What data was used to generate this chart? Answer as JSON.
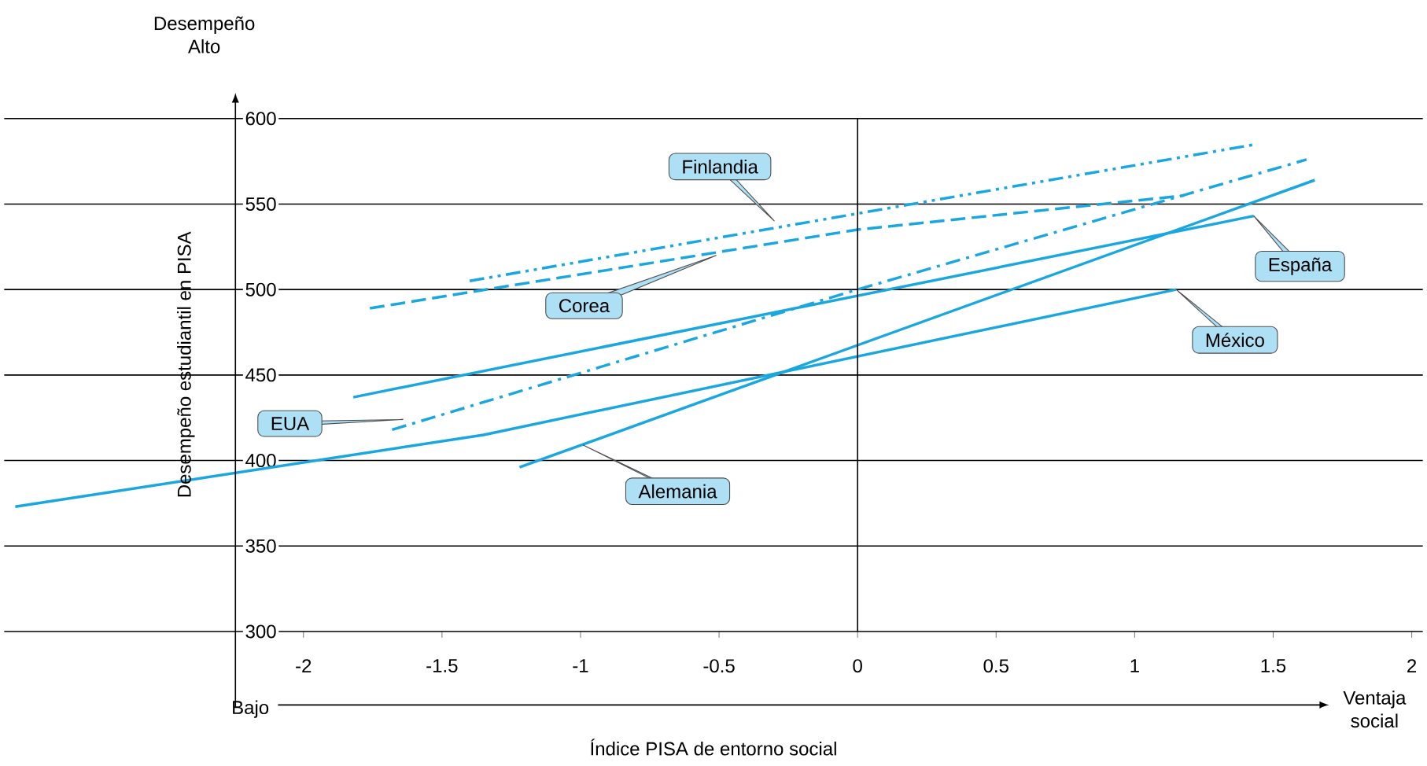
{
  "chart_data": {
    "type": "line",
    "xlabel": "Índice PISA de entorno social",
    "ylabel": "Desempeño estudiantil en PISA",
    "xlim": [
      -3.08,
      2.04
    ],
    "ylim": [
      300,
      600
    ],
    "xticks": [
      -2,
      -1.5,
      -1,
      -0.5,
      0,
      0.5,
      1,
      1.5,
      2
    ],
    "yticks": [
      300,
      350,
      400,
      450,
      500,
      550,
      600
    ],
    "grid": "y",
    "ref_lines": [
      {
        "axis": "x",
        "value": 0,
        "color": "#000000"
      }
    ],
    "series": [
      {
        "x": [
          -1.4,
          1.44
        ],
        "values": [
          505,
          585
        ],
        "color": "#1aa7e0",
        "line_style": "dashdotdot"
      },
      {
        "x": [
          -1.76,
          0,
          1.18
        ],
        "values": [
          489,
          535,
          555
        ],
        "color": "#1aa7e0",
        "line_style": "dashed"
      },
      {
        "x": [
          -1.82,
          1.43
        ],
        "values": [
          437,
          543
        ],
        "color": "#1aa7e0",
        "line_style": "solid"
      },
      {
        "x": [
          -3.04,
          -1.35,
          1.15
        ],
        "values": [
          373,
          415,
          500
        ],
        "color": "#1aa7e0",
        "line_style": "solid"
      },
      {
        "x": [
          -1.68,
          0,
          1.62
        ],
        "values": [
          418,
          500,
          576
        ],
        "color": "#1aa7e0",
        "line_style": "dashdot"
      },
      {
        "x": [
          -1.22,
          1.65
        ],
        "values": [
          396,
          564
        ],
        "color": "#1aa7e0",
        "line_style": "solid"
      }
    ],
    "annotations": [
      "Desempeño Alto",
      "Bajo",
      "Ventaja social",
      {
        "text": "Finlandia",
        "x": -0.3,
        "y": 540
      },
      {
        "text": "Corea",
        "x": -0.51,
        "y": 520
      },
      {
        "text": "España",
        "x": 1.43,
        "y": 543
      },
      {
        "text": "México",
        "x": 1.15,
        "y": 500
      },
      {
        "text": "EUA",
        "x": -1.64,
        "y": 424
      },
      {
        "text": "Alemania",
        "x": -0.99,
        "y": 409
      }
    ]
  }
}
